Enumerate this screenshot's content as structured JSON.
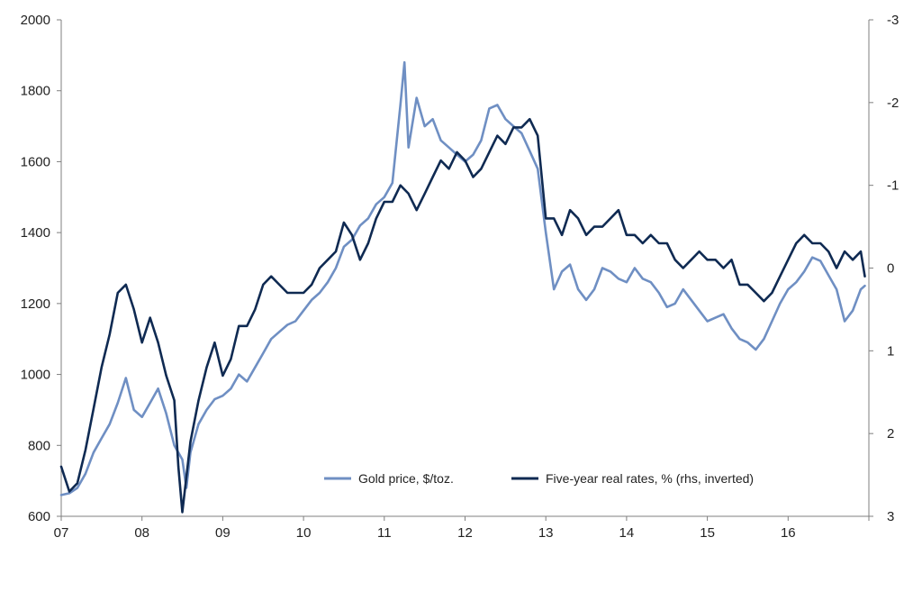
{
  "chart_data": {
    "type": "line",
    "title": "",
    "x_tick_labels": [
      "07",
      "08",
      "09",
      "10",
      "11",
      "12",
      "13",
      "14",
      "15",
      "16"
    ],
    "x_tick_values": [
      2007,
      2008,
      2009,
      2010,
      2011,
      2012,
      2013,
      2014,
      2015,
      2016
    ],
    "xlim": [
      2007,
      2017
    ],
    "y_left": {
      "label": "Gold price, $/toz.",
      "ticks": [
        600,
        800,
        1000,
        1200,
        1400,
        1600,
        1800,
        2000
      ],
      "ylim": [
        600,
        2000
      ]
    },
    "y_right": {
      "label": "Five-year real rates, % (rhs, inverted)",
      "ticks": [
        -3,
        -2,
        -1,
        0,
        1,
        2,
        3
      ],
      "ylim": [
        -3,
        3
      ],
      "inverted": true
    },
    "series": [
      {
        "name": "Gold price, $/toz.",
        "axis": "left",
        "color": "#6f8fc3",
        "x": [
          2007.0,
          2007.1,
          2007.2,
          2007.3,
          2007.4,
          2007.5,
          2007.6,
          2007.7,
          2007.8,
          2007.9,
          2008.0,
          2008.1,
          2008.2,
          2008.3,
          2008.4,
          2008.5,
          2008.55,
          2008.6,
          2008.7,
          2008.8,
          2008.9,
          2009.0,
          2009.1,
          2009.2,
          2009.3,
          2009.4,
          2009.5,
          2009.6,
          2009.7,
          2009.8,
          2009.9,
          2010.0,
          2010.1,
          2010.2,
          2010.3,
          2010.4,
          2010.5,
          2010.6,
          2010.7,
          2010.8,
          2010.9,
          2011.0,
          2011.1,
          2011.2,
          2011.25,
          2011.3,
          2011.4,
          2011.5,
          2011.6,
          2011.7,
          2011.8,
          2011.9,
          2012.0,
          2012.1,
          2012.2,
          2012.3,
          2012.4,
          2012.5,
          2012.6,
          2012.7,
          2012.8,
          2012.9,
          2013.0,
          2013.1,
          2013.2,
          2013.3,
          2013.4,
          2013.5,
          2013.6,
          2013.7,
          2013.8,
          2013.9,
          2014.0,
          2014.1,
          2014.2,
          2014.3,
          2014.4,
          2014.5,
          2014.6,
          2014.7,
          2014.8,
          2014.9,
          2015.0,
          2015.1,
          2015.2,
          2015.3,
          2015.4,
          2015.5,
          2015.6,
          2015.7,
          2015.8,
          2015.9,
          2016.0,
          2016.1,
          2016.2,
          2016.3,
          2016.4,
          2016.5,
          2016.6,
          2016.7,
          2016.8,
          2016.9,
          2016.95
        ],
        "values": [
          660,
          665,
          680,
          720,
          780,
          820,
          860,
          920,
          990,
          900,
          880,
          920,
          960,
          890,
          800,
          760,
          680,
          780,
          860,
          900,
          930,
          940,
          960,
          1000,
          980,
          1020,
          1060,
          1100,
          1120,
          1140,
          1150,
          1180,
          1210,
          1230,
          1260,
          1300,
          1360,
          1380,
          1420,
          1440,
          1480,
          1500,
          1540,
          1760,
          1880,
          1640,
          1780,
          1700,
          1720,
          1660,
          1640,
          1620,
          1600,
          1620,
          1660,
          1750,
          1760,
          1720,
          1700,
          1680,
          1630,
          1580,
          1400,
          1240,
          1290,
          1310,
          1240,
          1210,
          1240,
          1300,
          1290,
          1270,
          1260,
          1300,
          1270,
          1260,
          1230,
          1190,
          1200,
          1240,
          1210,
          1180,
          1150,
          1160,
          1170,
          1130,
          1100,
          1090,
          1070,
          1100,
          1150,
          1200,
          1240,
          1260,
          1290,
          1330,
          1320,
          1280,
          1240,
          1150,
          1180,
          1240,
          1250
        ]
      },
      {
        "name": "Five-year real rates, % (rhs, inverted)",
        "axis": "right",
        "color": "#0f2a52",
        "x": [
          2007.0,
          2007.1,
          2007.2,
          2007.3,
          2007.4,
          2007.5,
          2007.6,
          2007.7,
          2007.8,
          2007.9,
          2008.0,
          2008.1,
          2008.2,
          2008.3,
          2008.4,
          2008.45,
          2008.5,
          2008.6,
          2008.7,
          2008.8,
          2008.9,
          2009.0,
          2009.1,
          2009.2,
          2009.3,
          2009.4,
          2009.5,
          2009.6,
          2009.7,
          2009.8,
          2009.9,
          2010.0,
          2010.1,
          2010.2,
          2010.3,
          2010.4,
          2010.5,
          2010.6,
          2010.7,
          2010.8,
          2010.9,
          2011.0,
          2011.1,
          2011.2,
          2011.3,
          2011.4,
          2011.5,
          2011.6,
          2011.7,
          2011.8,
          2011.9,
          2012.0,
          2012.1,
          2012.2,
          2012.3,
          2012.4,
          2012.5,
          2012.6,
          2012.7,
          2012.8,
          2012.9,
          2013.0,
          2013.1,
          2013.2,
          2013.3,
          2013.4,
          2013.5,
          2013.6,
          2013.7,
          2013.8,
          2013.9,
          2014.0,
          2014.1,
          2014.2,
          2014.3,
          2014.4,
          2014.5,
          2014.6,
          2014.7,
          2014.8,
          2014.9,
          2015.0,
          2015.1,
          2015.2,
          2015.3,
          2015.4,
          2015.5,
          2015.6,
          2015.7,
          2015.8,
          2015.9,
          2016.0,
          2016.1,
          2016.2,
          2016.3,
          2016.4,
          2016.5,
          2016.6,
          2016.7,
          2016.8,
          2016.9,
          2016.95
        ],
        "values": [
          2.4,
          2.7,
          2.6,
          2.2,
          1.7,
          1.2,
          0.8,
          0.3,
          0.2,
          0.5,
          0.9,
          0.6,
          0.9,
          1.3,
          1.6,
          2.4,
          2.95,
          2.1,
          1.6,
          1.2,
          0.9,
          1.3,
          1.1,
          0.7,
          0.7,
          0.5,
          0.2,
          0.1,
          0.2,
          0.3,
          0.3,
          0.3,
          0.2,
          0.0,
          -0.1,
          -0.2,
          -0.55,
          -0.4,
          -0.1,
          -0.3,
          -0.6,
          -0.8,
          -0.8,
          -1.0,
          -0.9,
          -0.7,
          -0.9,
          -1.1,
          -1.3,
          -1.2,
          -1.4,
          -1.3,
          -1.1,
          -1.2,
          -1.4,
          -1.6,
          -1.5,
          -1.7,
          -1.7,
          -1.8,
          -1.6,
          -0.6,
          -0.6,
          -0.4,
          -0.7,
          -0.6,
          -0.4,
          -0.5,
          -0.5,
          -0.6,
          -0.7,
          -0.4,
          -0.4,
          -0.3,
          -0.4,
          -0.3,
          -0.3,
          -0.1,
          0.0,
          -0.1,
          -0.2,
          -0.1,
          -0.1,
          0.0,
          -0.1,
          0.2,
          0.2,
          0.3,
          0.4,
          0.3,
          0.1,
          -0.1,
          -0.3,
          -0.4,
          -0.3,
          -0.3,
          -0.2,
          0.0,
          -0.2,
          -0.1,
          -0.2,
          0.1
        ]
      }
    ],
    "legend_position": "bottom-right",
    "grid": false
  }
}
